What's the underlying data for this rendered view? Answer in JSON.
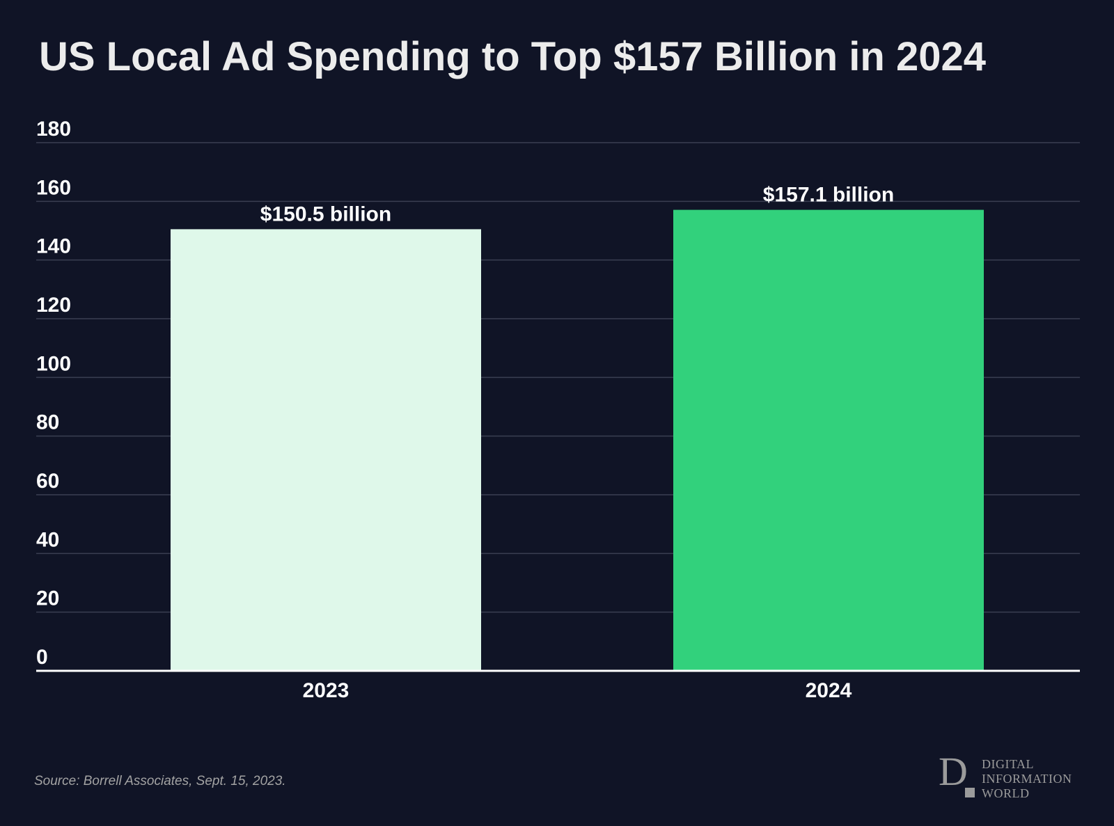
{
  "chart_data": {
    "type": "bar",
    "title": "US Local Ad Spending to Top $157 Billion in 2024",
    "categories": [
      "2023",
      "2024"
    ],
    "values": [
      150.5,
      157.1
    ],
    "data_labels": [
      "$150.5 billion",
      "$157.1 billion"
    ],
    "bar_colors": [
      "#dff8ea",
      "#32d17c"
    ],
    "ylim": [
      0,
      180
    ],
    "yticks": [
      "0",
      "20",
      "40",
      "60",
      "80",
      "100",
      "120",
      "140",
      "160",
      "180"
    ],
    "xlabel": "",
    "ylabel": "",
    "grid": true
  },
  "colors": {
    "background": "#101426",
    "gridline": "#3a3f52",
    "axis": "#ffffff"
  },
  "footer": {
    "source": "Source: Borrell Associates, Sept. 15, 2023."
  },
  "logo": {
    "mark": "D",
    "line1": "DIGITAL",
    "line2": "INFORMATION",
    "line3": "WORLD"
  }
}
